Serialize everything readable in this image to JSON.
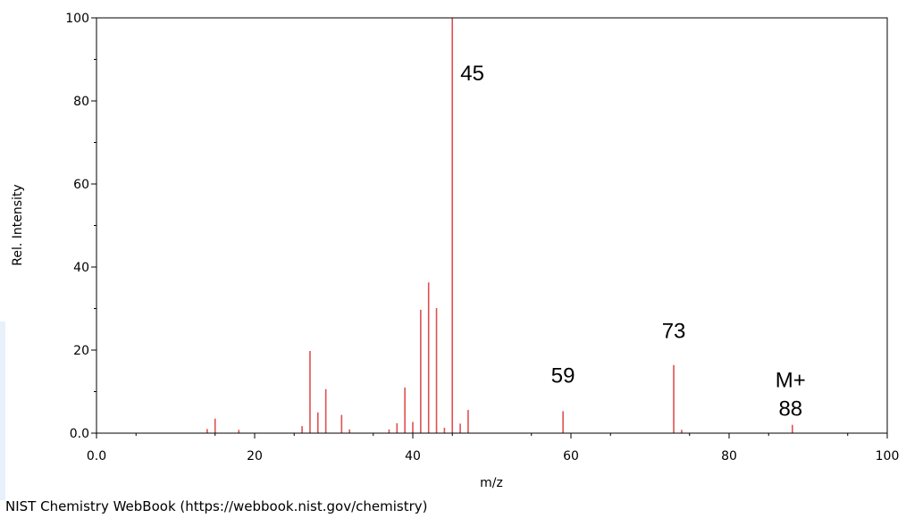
{
  "chart_data": {
    "type": "bar",
    "xlabel": "m/z",
    "ylabel": "Rel. Intensity",
    "xlim": [
      0,
      100
    ],
    "ylim": [
      0,
      100
    ],
    "x_ticks": [
      {
        "value": 0,
        "label": "0.0"
      },
      {
        "value": 20,
        "label": "20"
      },
      {
        "value": 40,
        "label": "40"
      },
      {
        "value": 60,
        "label": "60"
      },
      {
        "value": 80,
        "label": "80"
      },
      {
        "value": 100,
        "label": "100"
      }
    ],
    "y_ticks": [
      {
        "value": 0,
        "label": "0.0"
      },
      {
        "value": 20,
        "label": "20"
      },
      {
        "value": 40,
        "label": "40"
      },
      {
        "value": 60,
        "label": "60"
      },
      {
        "value": 80,
        "label": "80"
      },
      {
        "value": 100,
        "label": "100"
      }
    ],
    "series_color": "#e05050",
    "peaks": [
      {
        "mz": 14,
        "intensity": 1.0
      },
      {
        "mz": 15,
        "intensity": 3.5
      },
      {
        "mz": 18,
        "intensity": 0.8
      },
      {
        "mz": 26,
        "intensity": 1.7
      },
      {
        "mz": 27,
        "intensity": 19.8
      },
      {
        "mz": 28,
        "intensity": 5.0
      },
      {
        "mz": 29,
        "intensity": 10.6
      },
      {
        "mz": 31,
        "intensity": 4.4
      },
      {
        "mz": 32,
        "intensity": 0.9
      },
      {
        "mz": 37,
        "intensity": 0.9
      },
      {
        "mz": 38,
        "intensity": 2.4
      },
      {
        "mz": 39,
        "intensity": 11.0
      },
      {
        "mz": 40,
        "intensity": 2.7
      },
      {
        "mz": 41,
        "intensity": 29.7
      },
      {
        "mz": 42,
        "intensity": 36.3
      },
      {
        "mz": 43,
        "intensity": 30.1
      },
      {
        "mz": 44,
        "intensity": 1.3
      },
      {
        "mz": 45,
        "intensity": 100.0
      },
      {
        "mz": 46,
        "intensity": 2.3
      },
      {
        "mz": 47,
        "intensity": 5.6
      },
      {
        "mz": 59,
        "intensity": 5.3
      },
      {
        "mz": 73,
        "intensity": 16.4
      },
      {
        "mz": 74,
        "intensity": 0.8
      },
      {
        "mz": 88,
        "intensity": 2.0
      }
    ],
    "annotations": [
      {
        "label": "45",
        "mz": 45,
        "intensity": 100
      },
      {
        "label": "59",
        "mz": 59,
        "intensity": 5.3
      },
      {
        "label": "73",
        "mz": 73,
        "intensity": 16.4
      },
      {
        "label": "M+",
        "mz": 88,
        "intensity": 2.0
      },
      {
        "label": "88",
        "mz": 88,
        "intensity": 2.0
      }
    ]
  },
  "footer": {
    "source": "NIST Chemistry WebBook (https://webbook.nist.gov/chemistry)"
  }
}
